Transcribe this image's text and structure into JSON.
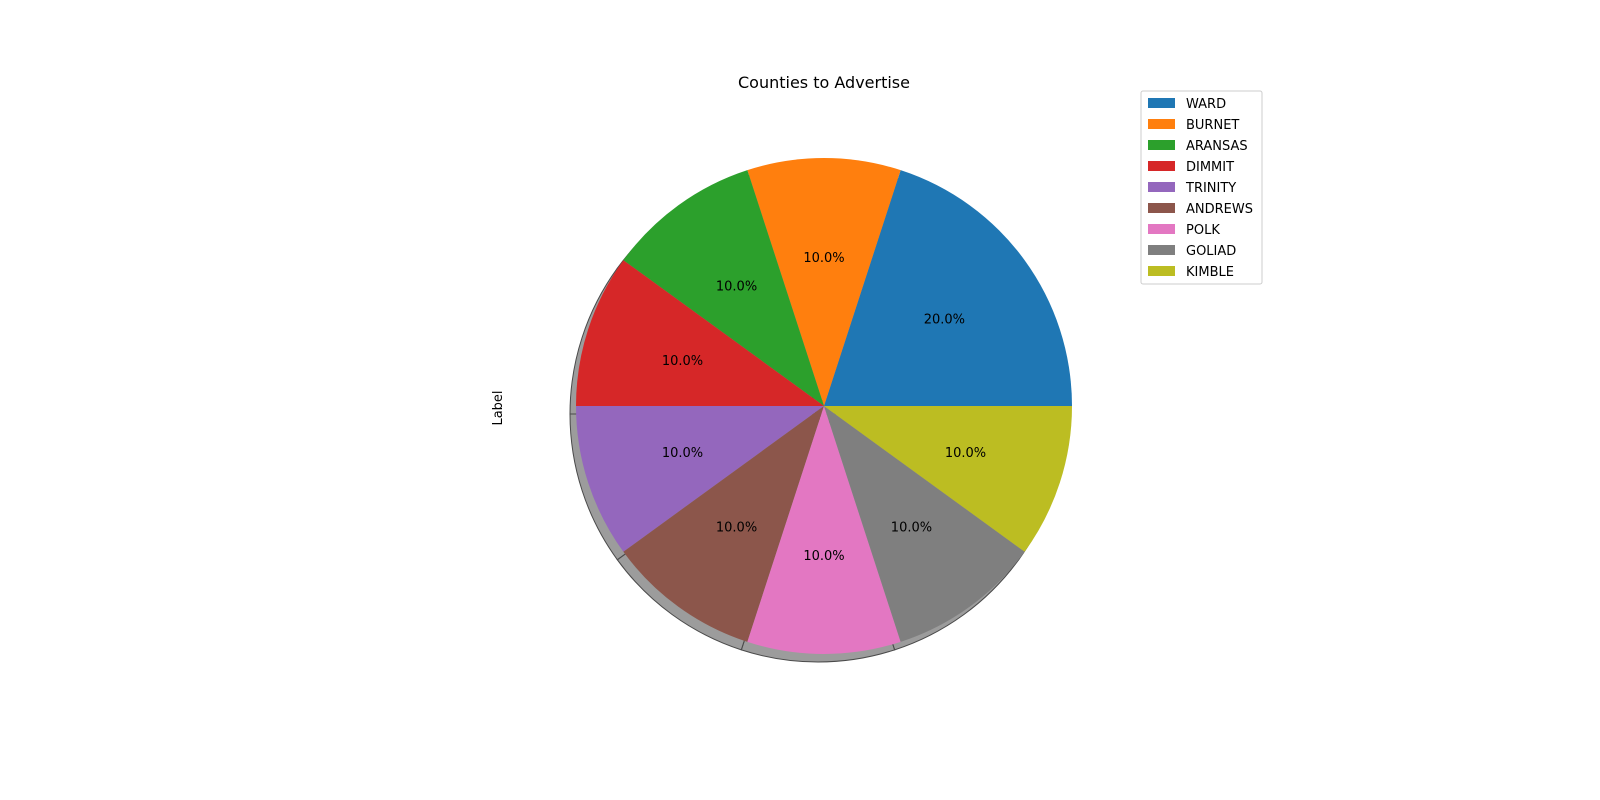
{
  "chart_data": {
    "type": "pie",
    "title": "Counties to Advertise",
    "ylabel": "Label",
    "shadow": true,
    "start_angle_deg": 0,
    "direction": "counterclockwise",
    "legend_position": "top-right",
    "slices": [
      {
        "label": "WARD",
        "value": 20.0,
        "pct_text": "20.0%",
        "color": "#1f77b4"
      },
      {
        "label": "BURNET",
        "value": 10.0,
        "pct_text": "10.0%",
        "color": "#ff7f0e"
      },
      {
        "label": "ARANSAS",
        "value": 10.0,
        "pct_text": "10.0%",
        "color": "#2ca02c"
      },
      {
        "label": "DIMMIT",
        "value": 10.0,
        "pct_text": "10.0%",
        "color": "#d62728"
      },
      {
        "label": "TRINITY",
        "value": 10.0,
        "pct_text": "10.0%",
        "color": "#9467bd"
      },
      {
        "label": "ANDREWS",
        "value": 10.0,
        "pct_text": "10.0%",
        "color": "#8c564b"
      },
      {
        "label": "POLK",
        "value": 10.0,
        "pct_text": "10.0%",
        "color": "#e377c2"
      },
      {
        "label": "GOLIAD",
        "value": 10.0,
        "pct_text": "10.0%",
        "color": "#7f7f7f"
      },
      {
        "label": "KIMBLE",
        "value": 10.0,
        "pct_text": "10.0%",
        "color": "#bcbd22"
      }
    ]
  }
}
